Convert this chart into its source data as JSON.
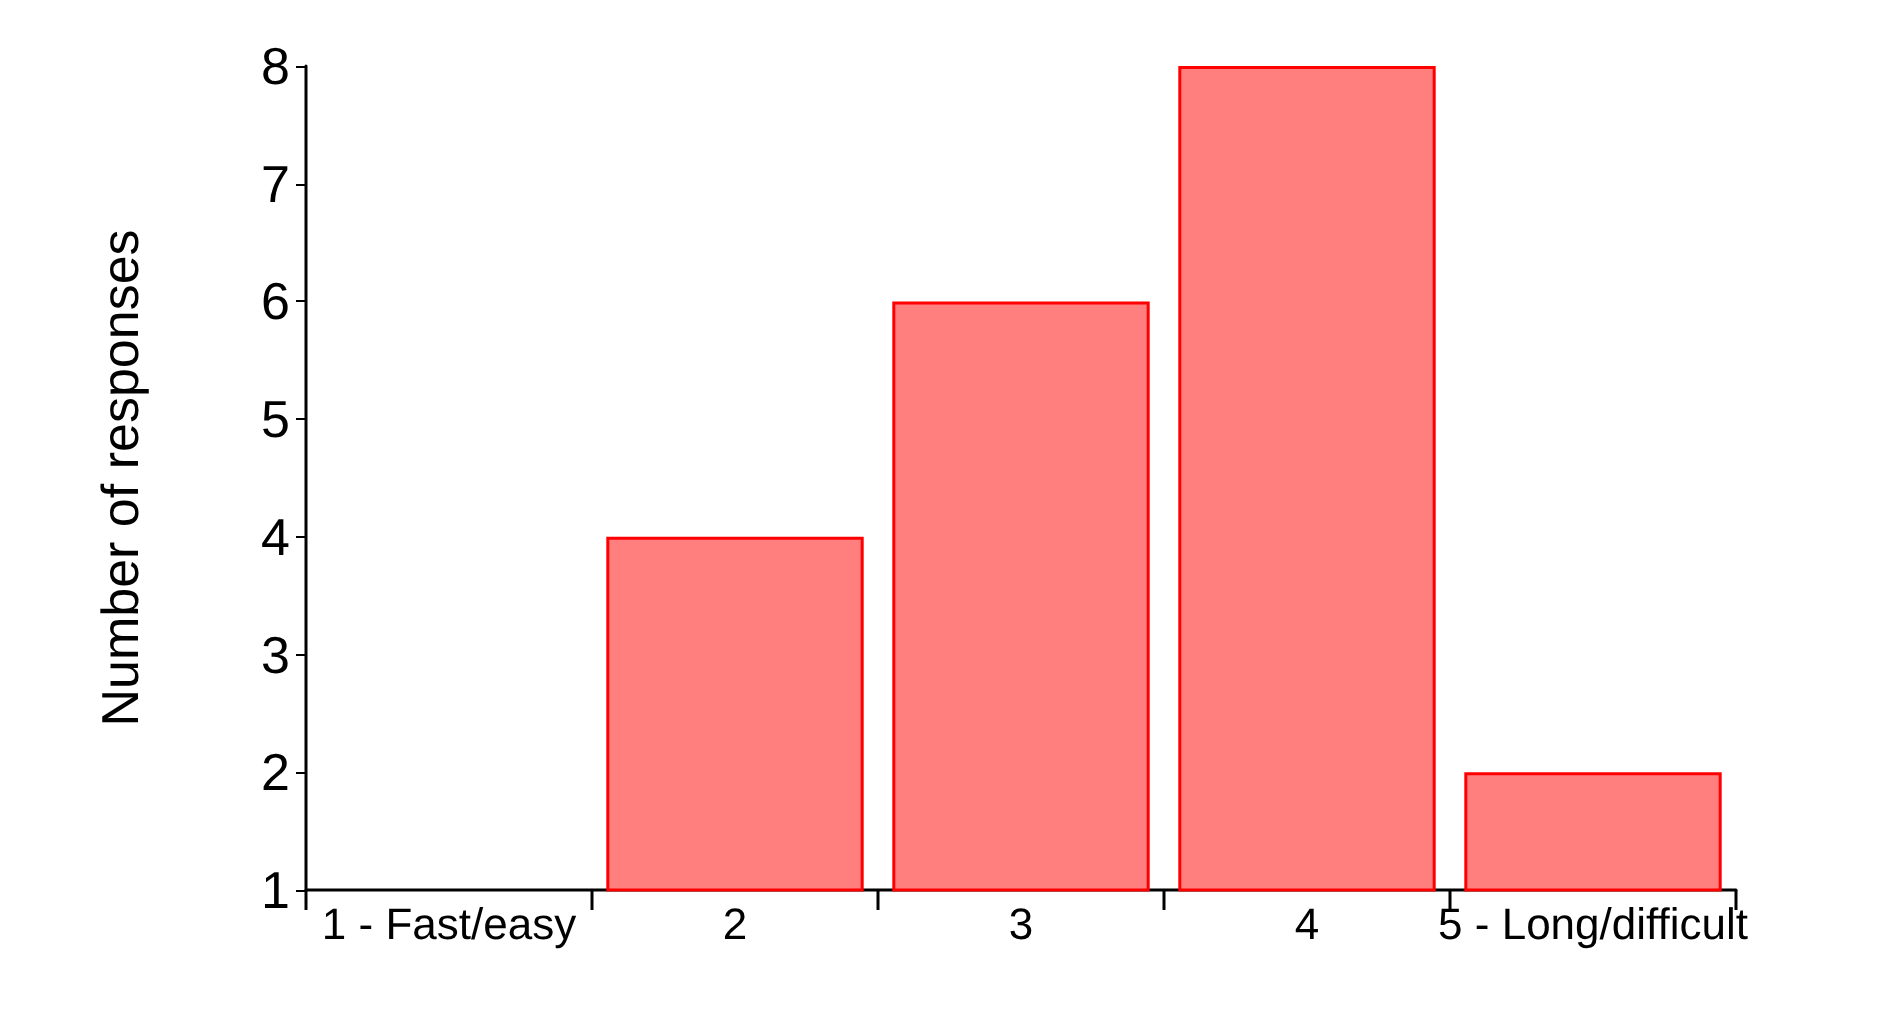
{
  "chart_data": {
    "type": "bar",
    "ylabel": "Number of responses",
    "categories": [
      "1 - Fast/easy",
      "2",
      "3",
      "4",
      "5 - Long/difficult"
    ],
    "values": [
      1,
      4,
      6,
      8,
      2
    ],
    "color": "#ff7f7f",
    "ylim": [
      1,
      8
    ],
    "yticks": [
      1,
      2,
      3,
      4,
      5,
      6,
      7,
      8
    ],
    "grid": false
  }
}
